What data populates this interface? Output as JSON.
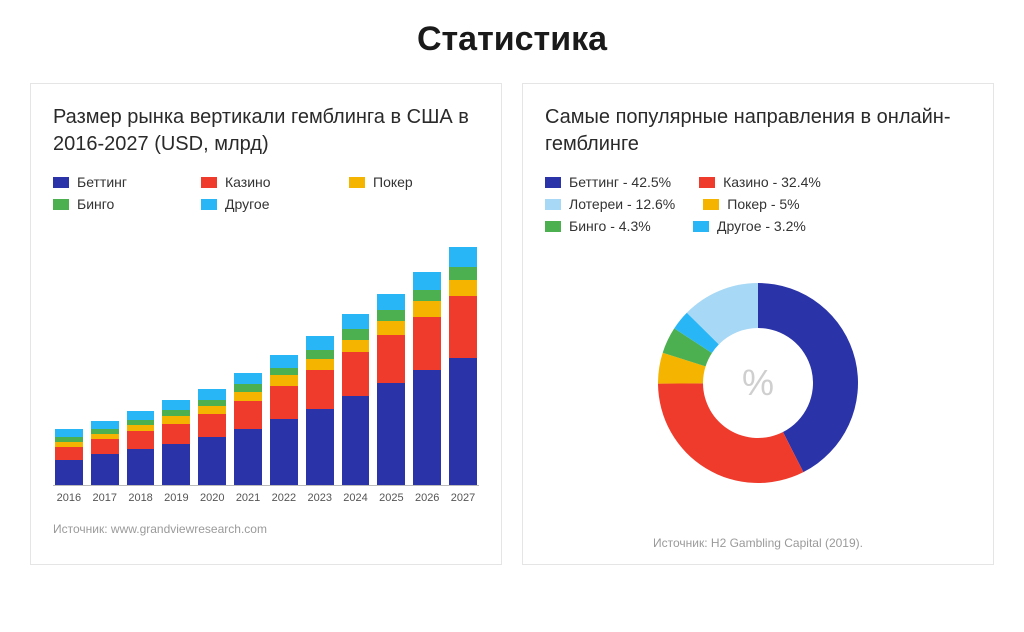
{
  "page_title": "Статистика",
  "left": {
    "title": "Размер рынка вертикали гемблинга в США в 2016-2027 (USD, млрд)",
    "legend": [
      {
        "label": "Беттинг",
        "color": "#2a33a8"
      },
      {
        "label": "Казино",
        "color": "#ef3b2c"
      },
      {
        "label": "Покер",
        "color": "#f4b400"
      },
      {
        "label": "Бинго",
        "color": "#4caf50"
      },
      {
        "label": "Другое",
        "color": "#29b6f6"
      }
    ],
    "chart": {
      "type": "stacked-bar",
      "ylim": [
        0,
        100
      ],
      "bar_width": 0.78,
      "background_color": "#ffffff",
      "axis_color": "#bbbbbb",
      "tick_label_fontsize": 11,
      "tick_label_color": "#555555",
      "categories": [
        "2016",
        "2017",
        "2018",
        "2019",
        "2020",
        "2021",
        "2022",
        "2023",
        "2024",
        "2025",
        "2026",
        "2027"
      ],
      "series_order": [
        "Беттинг",
        "Казино",
        "Покер",
        "Бинго",
        "Другое"
      ],
      "series_colors": {
        "Беттинг": "#2a33a8",
        "Казино": "#ef3b2c",
        "Покер": "#f4b400",
        "Бинго": "#4caf50",
        "Другое": "#29b6f6"
      },
      "values": {
        "Беттинг": [
          10,
          12,
          14,
          16,
          19,
          22,
          26,
          30,
          35,
          40,
          45,
          50
        ],
        "Казино": [
          5,
          6,
          7,
          8,
          9,
          11,
          13,
          15,
          17,
          19,
          21,
          24
        ],
        "Покер": [
          2,
          2,
          2.5,
          3,
          3,
          3.5,
          4,
          4.5,
          5,
          5.5,
          6,
          6.5
        ],
        "Бинго": [
          2,
          2,
          2,
          2.5,
          2.5,
          3,
          3,
          3.5,
          4,
          4,
          4.5,
          5
        ],
        "Другое": [
          3,
          3,
          3.5,
          4,
          4,
          4.5,
          5,
          5.5,
          6,
          6.5,
          7,
          8
        ]
      }
    },
    "source": "Источник: www.grandviewresearch.com"
  },
  "right": {
    "title": "Самые популярные направления в онлайн-гемблинге",
    "legend": [
      {
        "label": "Беттинг - 42.5%",
        "color": "#2a33a8"
      },
      {
        "label": "Казино - 32.4%",
        "color": "#ef3b2c"
      },
      {
        "label": "Лотереи - 12.6%",
        "color": "#a7d8f5"
      },
      {
        "label": "Покер - 5%",
        "color": "#f4b400"
      },
      {
        "label": "Бинго - 4.3%",
        "color": "#4caf50"
      },
      {
        "label": "Другое - 3.2%",
        "color": "#29b6f6"
      }
    ],
    "donut": {
      "type": "donut",
      "center_label": "%",
      "center_label_color": "#cfcfcf",
      "center_label_fontsize": 36,
      "inner_radius": 55,
      "outer_radius": 100,
      "background_color": "#ffffff",
      "hole_color": "#ffffff",
      "start_angle_deg": -90,
      "slices": [
        {
          "label": "Беттинг",
          "value": 42.5,
          "color": "#2a33a8"
        },
        {
          "label": "Казино",
          "value": 32.4,
          "color": "#ef3b2c"
        },
        {
          "label": "Покер",
          "value": 5.0,
          "color": "#f4b400"
        },
        {
          "label": "Бинго",
          "value": 4.3,
          "color": "#4caf50"
        },
        {
          "label": "Другое",
          "value": 3.2,
          "color": "#29b6f6"
        },
        {
          "label": "Лотереи",
          "value": 12.6,
          "color": "#a7d8f5"
        }
      ]
    },
    "source": "Источник: H2 Gambling Capital (2019)."
  }
}
